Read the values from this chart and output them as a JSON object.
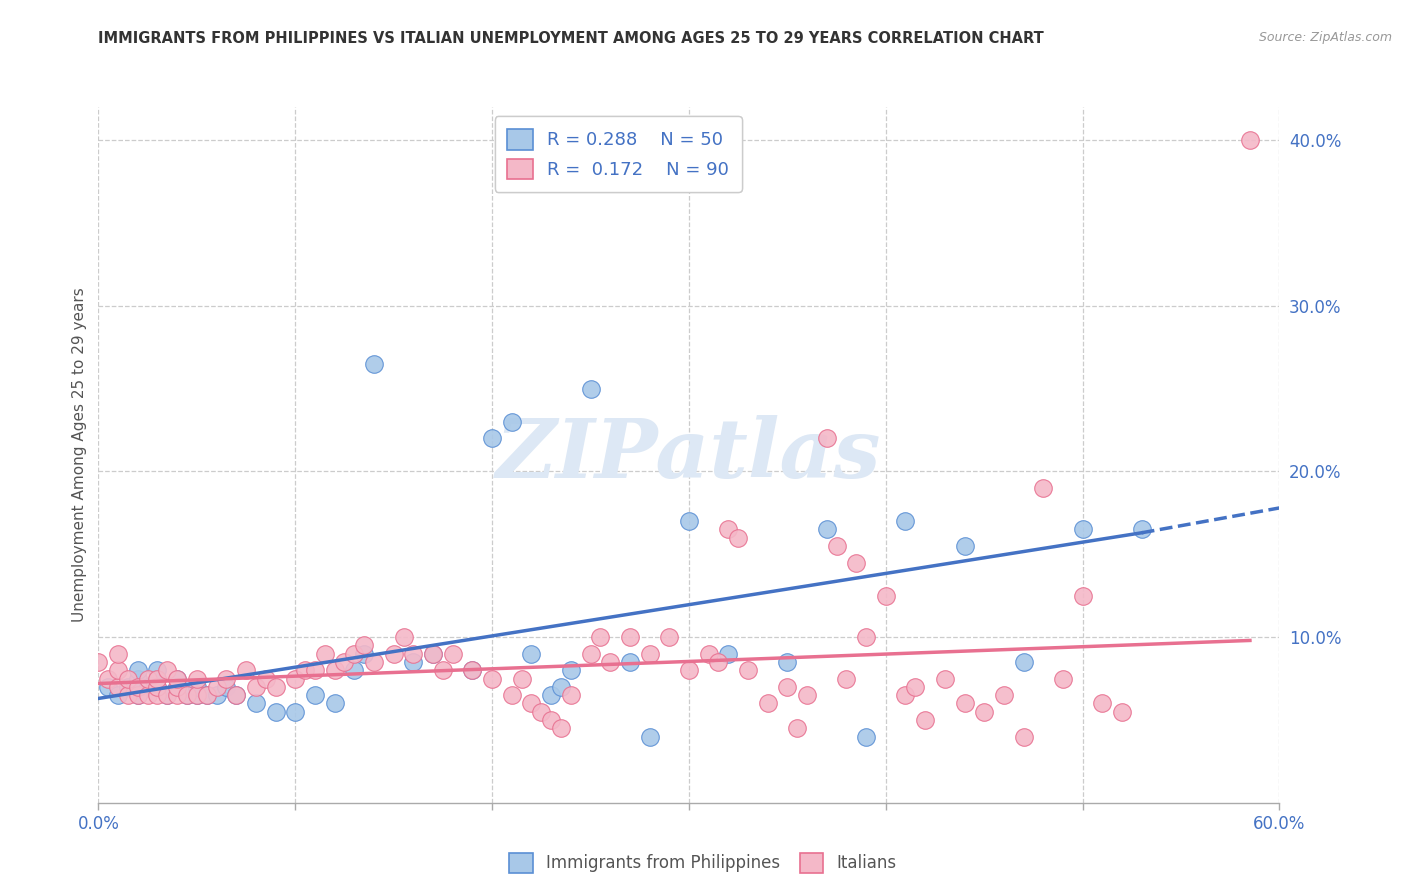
{
  "title": "IMMIGRANTS FROM PHILIPPINES VS ITALIAN UNEMPLOYMENT AMONG AGES 25 TO 29 YEARS CORRELATION CHART",
  "source": "Source: ZipAtlas.com",
  "ylabel": "Unemployment Among Ages 25 to 29 years",
  "xlim": [
    0.0,
    0.6
  ],
  "ylim": [
    0.0,
    0.42
  ],
  "xticks": [
    0.0,
    0.1,
    0.2,
    0.3,
    0.4,
    0.5,
    0.6
  ],
  "xticklabels_ends": [
    "0.0%",
    "60.0%"
  ],
  "yticks_right": [
    0.1,
    0.2,
    0.3,
    0.4
  ],
  "yticklabels_right": [
    "10.0%",
    "20.0%",
    "30.0%",
    "40.0%"
  ],
  "blue_color": "#a8c8e8",
  "pink_color": "#f4b8c8",
  "blue_edge_color": "#5a8fd4",
  "pink_edge_color": "#e87090",
  "blue_line_color": "#4472c4",
  "pink_line_color": "#e87090",
  "watermark_text": "ZIPatlas",
  "legend_R1": "R = 0.288",
  "legend_N1": "N = 50",
  "legend_R2": "R =  0.172",
  "legend_N2": "N = 90",
  "blue_scatter_x": [
    0.005,
    0.01,
    0.015,
    0.02,
    0.02,
    0.02,
    0.025,
    0.03,
    0.03,
    0.03,
    0.035,
    0.04,
    0.04,
    0.045,
    0.05,
    0.05,
    0.055,
    0.06,
    0.065,
    0.07,
    0.08,
    0.09,
    0.1,
    0.11,
    0.12,
    0.13,
    0.135,
    0.14,
    0.16,
    0.17,
    0.19,
    0.2,
    0.21,
    0.22,
    0.23,
    0.235,
    0.24,
    0.25,
    0.27,
    0.28,
    0.3,
    0.32,
    0.35,
    0.37,
    0.39,
    0.41,
    0.44,
    0.47,
    0.5,
    0.53
  ],
  "blue_scatter_y": [
    0.07,
    0.065,
    0.07,
    0.065,
    0.075,
    0.08,
    0.07,
    0.07,
    0.075,
    0.08,
    0.065,
    0.07,
    0.075,
    0.065,
    0.065,
    0.07,
    0.065,
    0.065,
    0.07,
    0.065,
    0.06,
    0.055,
    0.055,
    0.065,
    0.06,
    0.08,
    0.09,
    0.265,
    0.085,
    0.09,
    0.08,
    0.22,
    0.23,
    0.09,
    0.065,
    0.07,
    0.08,
    0.25,
    0.085,
    0.04,
    0.17,
    0.09,
    0.085,
    0.165,
    0.04,
    0.17,
    0.155,
    0.085,
    0.165,
    0.165
  ],
  "pink_scatter_x": [
    0.0,
    0.005,
    0.01,
    0.01,
    0.01,
    0.015,
    0.015,
    0.02,
    0.02,
    0.025,
    0.025,
    0.03,
    0.03,
    0.03,
    0.035,
    0.035,
    0.04,
    0.04,
    0.04,
    0.045,
    0.05,
    0.05,
    0.055,
    0.06,
    0.065,
    0.07,
    0.075,
    0.08,
    0.085,
    0.09,
    0.1,
    0.105,
    0.11,
    0.115,
    0.12,
    0.125,
    0.13,
    0.135,
    0.14,
    0.15,
    0.155,
    0.16,
    0.17,
    0.175,
    0.18,
    0.19,
    0.2,
    0.21,
    0.215,
    0.22,
    0.225,
    0.23,
    0.235,
    0.24,
    0.25,
    0.255,
    0.26,
    0.27,
    0.28,
    0.29,
    0.3,
    0.31,
    0.315,
    0.32,
    0.325,
    0.33,
    0.34,
    0.35,
    0.355,
    0.36,
    0.37,
    0.375,
    0.38,
    0.385,
    0.39,
    0.4,
    0.41,
    0.415,
    0.42,
    0.43,
    0.44,
    0.45,
    0.46,
    0.47,
    0.48,
    0.49,
    0.5,
    0.51,
    0.52,
    0.585
  ],
  "pink_scatter_y": [
    0.085,
    0.075,
    0.07,
    0.08,
    0.09,
    0.065,
    0.075,
    0.065,
    0.07,
    0.065,
    0.075,
    0.065,
    0.07,
    0.075,
    0.065,
    0.08,
    0.065,
    0.07,
    0.075,
    0.065,
    0.065,
    0.075,
    0.065,
    0.07,
    0.075,
    0.065,
    0.08,
    0.07,
    0.075,
    0.07,
    0.075,
    0.08,
    0.08,
    0.09,
    0.08,
    0.085,
    0.09,
    0.095,
    0.085,
    0.09,
    0.1,
    0.09,
    0.09,
    0.08,
    0.09,
    0.08,
    0.075,
    0.065,
    0.075,
    0.06,
    0.055,
    0.05,
    0.045,
    0.065,
    0.09,
    0.1,
    0.085,
    0.1,
    0.09,
    0.1,
    0.08,
    0.09,
    0.085,
    0.165,
    0.16,
    0.08,
    0.06,
    0.07,
    0.045,
    0.065,
    0.22,
    0.155,
    0.075,
    0.145,
    0.1,
    0.125,
    0.065,
    0.07,
    0.05,
    0.075,
    0.06,
    0.055,
    0.065,
    0.04,
    0.19,
    0.075,
    0.125,
    0.06,
    0.055,
    0.4
  ],
  "blue_line_x0": 0.0,
  "blue_line_x1": 0.53,
  "blue_line_x_ext": 0.6,
  "blue_line_y0": 0.063,
  "blue_line_y1": 0.163,
  "blue_line_y_ext": 0.178,
  "pink_line_x0": 0.0,
  "pink_line_x1": 0.585,
  "pink_line_y0": 0.072,
  "pink_line_y1": 0.098
}
